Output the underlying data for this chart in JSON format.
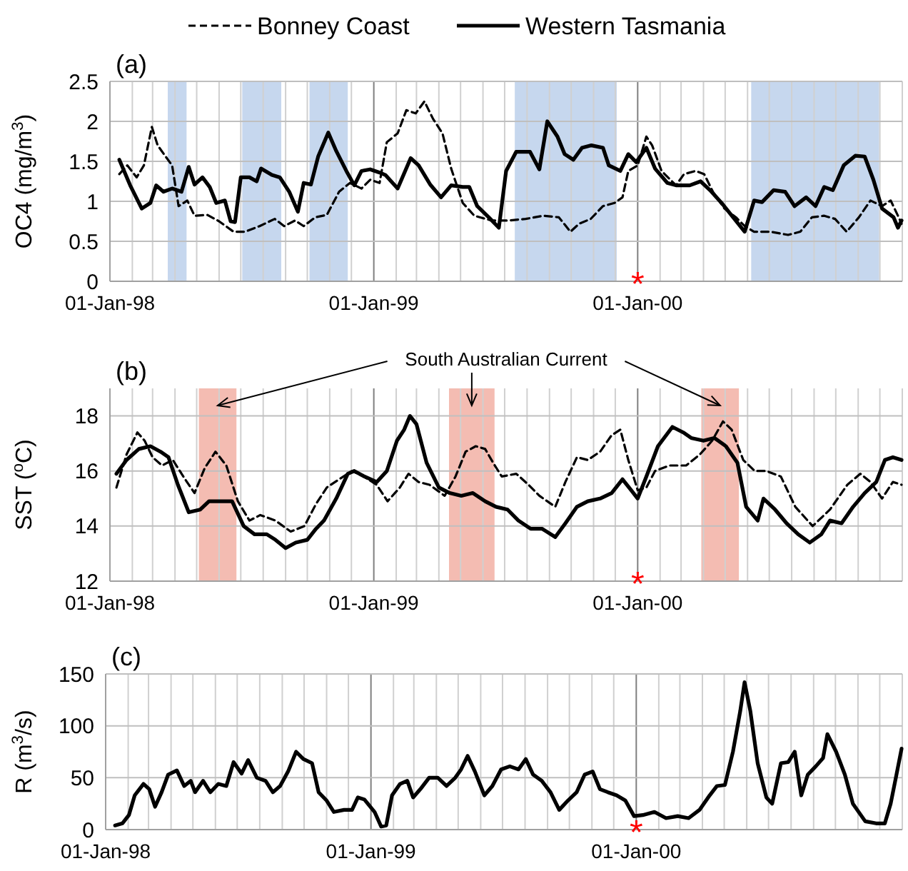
{
  "chart_data": [
    {
      "type": "line",
      "title": "(a)",
      "ylabel": "OC4 (mg/m$^{3}$)",
      "legend": "top",
      "grid": true,
      "xlim": [
        "1998-01-01",
        "2001-01-01"
      ],
      "xticks": [
        {
          "value": "1998-01-01",
          "label": "01-Jan-98"
        },
        {
          "value": "1998-02-01",
          "label": null
        },
        {
          "value": "1998-03-01",
          "label": null
        },
        {
          "value": "1998-04-01",
          "label": null
        },
        {
          "value": "1998-05-01",
          "label": null
        },
        {
          "value": "1998-06-01",
          "label": null
        },
        {
          "value": "1998-07-01",
          "label": null
        },
        {
          "value": "1998-08-01",
          "label": null
        },
        {
          "value": "1998-09-01",
          "label": null
        },
        {
          "value": "1998-10-01",
          "label": null
        },
        {
          "value": "1998-11-01",
          "label": null
        },
        {
          "value": "1998-12-01",
          "label": null
        },
        {
          "value": "1999-01-01",
          "label": "01-Jan-99"
        },
        {
          "value": "1999-02-01",
          "label": null
        },
        {
          "value": "1999-03-01",
          "label": null
        },
        {
          "value": "1999-04-01",
          "label": null
        },
        {
          "value": "1999-05-01",
          "label": null
        },
        {
          "value": "1999-06-01",
          "label": null
        },
        {
          "value": "1999-07-01",
          "label": null
        },
        {
          "value": "1999-08-01",
          "label": null
        },
        {
          "value": "1999-09-01",
          "label": null
        },
        {
          "value": "1999-10-01",
          "label": null
        },
        {
          "value": "1999-11-01",
          "label": null
        },
        {
          "value": "1999-12-01",
          "label": null
        },
        {
          "value": "2000-01-01",
          "label": "01-Jan-00"
        },
        {
          "value": "2000-02-01",
          "label": null
        },
        {
          "value": "2000-03-01",
          "label": null
        },
        {
          "value": "2000-04-01",
          "label": null
        },
        {
          "value": "2000-05-01",
          "label": null
        },
        {
          "value": "2000-06-01",
          "label": null
        },
        {
          "value": "2000-07-01",
          "label": null
        },
        {
          "value": "2000-08-01",
          "label": null
        },
        {
          "value": "2000-09-01",
          "label": null
        },
        {
          "value": "2000-10-01",
          "label": null
        },
        {
          "value": "2000-11-01",
          "label": null
        },
        {
          "value": "2000-12-01",
          "label": null
        },
        {
          "value": "2001-01-01",
          "label": null
        }
      ],
      "ylim": [
        0,
        2.5
      ],
      "yticks": [
        0,
        0.5,
        1,
        1.5,
        2,
        2.5
      ],
      "bands": [
        {
          "axis": "x",
          "from": "1998-03-22",
          "to": "1998-04-17",
          "color": "#c6d7ee"
        },
        {
          "axis": "x",
          "from": "1998-07-03",
          "to": "1998-08-26",
          "color": "#c6d7ee"
        },
        {
          "axis": "x",
          "from": "1998-10-04",
          "to": "1998-11-26",
          "color": "#c6d7ee"
        },
        {
          "axis": "x",
          "from": "1999-07-15",
          "to": "1999-12-03",
          "color": "#c6d7ee"
        },
        {
          "axis": "x",
          "from": "2000-06-06",
          "to": "2000-11-30",
          "color": "#c6d7ee"
        }
      ],
      "annotations": [
        "*"
      ],
      "series": [
        {
          "name": "Bonney Coast",
          "color": "#000000",
          "line_style": "dashed",
          "x": [
            "1998-01-14",
            "1998-01-25",
            "1998-02-07",
            "1998-02-17",
            "1998-02-28",
            "1998-03-08",
            "1998-03-19",
            "1998-03-28",
            "1998-04-06",
            "1998-04-18",
            "1998-04-28",
            "1998-05-16",
            "1998-06-01",
            "1998-06-21",
            "1998-07-07",
            "1998-07-27",
            "1998-08-17",
            "1998-08-30",
            "1998-09-14",
            "1998-09-26",
            "1998-10-12",
            "1998-10-28",
            "1998-11-14",
            "1998-11-29",
            "1998-12-15",
            "1998-12-27",
            "1999-01-09",
            "1999-01-19",
            "1999-02-03",
            "1999-02-15",
            "1999-02-28",
            "1999-03-12",
            "1999-03-24",
            "1999-04-06",
            "1999-04-18",
            "1999-05-04",
            "1999-05-20",
            "1999-06-13",
            "1999-07-07",
            "1999-07-30",
            "1999-08-24",
            "1999-09-14",
            "1999-09-30",
            "1999-10-12",
            "1999-10-28",
            "1999-11-14",
            "1999-11-30",
            "1999-12-11",
            "1999-12-19",
            "2000-01-01",
            "2000-01-13",
            "2000-01-21",
            "2000-02-03",
            "2000-02-23",
            "2000-03-05",
            "2000-03-21",
            "2000-04-02",
            "2000-04-14",
            "2000-04-30",
            "2000-05-16",
            "2000-05-28",
            "2000-06-10",
            "2000-07-03",
            "2000-07-27",
            "2000-08-13",
            "2000-08-29",
            "2000-09-15",
            "2000-09-30",
            "2000-10-16",
            "2000-11-02",
            "2000-11-18",
            "2000-12-04",
            "2000-12-16",
            "2000-12-27",
            "2000-12-31"
          ],
          "values": [
            1.34,
            1.45,
            1.3,
            1.45,
            1.93,
            1.7,
            1.56,
            1.45,
            0.94,
            1.01,
            0.82,
            0.83,
            0.75,
            0.62,
            0.62,
            0.69,
            0.78,
            0.69,
            0.76,
            0.69,
            0.8,
            0.83,
            1.12,
            1.23,
            1.16,
            1.27,
            1.23,
            1.74,
            1.85,
            2.14,
            2.1,
            2.25,
            2.03,
            1.85,
            1.41,
            0.98,
            0.82,
            0.76,
            0.76,
            0.78,
            0.82,
            0.8,
            0.62,
            0.72,
            0.78,
            0.94,
            0.98,
            1.05,
            1.38,
            1.45,
            1.81,
            1.7,
            1.38,
            1.2,
            1.34,
            1.38,
            1.34,
            1.12,
            0.91,
            0.8,
            0.69,
            0.62,
            0.62,
            0.58,
            0.62,
            0.8,
            0.82,
            0.78,
            0.62,
            0.8,
            1.01,
            0.94,
            1.01,
            0.8,
            0.72
          ]
        },
        {
          "name": "Western Tasmania",
          "color": "#000000",
          "line_style": "solid",
          "x": [
            "1998-01-14",
            "1998-01-29",
            "1998-02-14",
            "1998-02-26",
            "1998-03-06",
            "1998-03-16",
            "1998-03-28",
            "1998-04-10",
            "1998-04-20",
            "1998-04-28",
            "1998-05-09",
            "1998-05-19",
            "1998-05-28",
            "1998-06-09",
            "1998-06-17",
            "1998-06-23",
            "1998-07-01",
            "1998-07-13",
            "1998-07-23",
            "1998-07-29",
            "1998-08-13",
            "1998-08-24",
            "1998-09-06",
            "1998-09-18",
            "1998-09-26",
            "1998-10-06",
            "1998-10-16",
            "1998-10-30",
            "1998-11-10",
            "1998-11-24",
            "1998-12-05",
            "1998-12-15",
            "1998-12-27",
            "1999-01-09",
            "1999-01-17",
            "1999-02-03",
            "1999-02-21",
            "1999-03-04",
            "1999-03-20",
            "1999-04-04",
            "1999-04-18",
            "1999-05-04",
            "1999-05-13",
            "1999-05-24",
            "1999-06-09",
            "1999-06-23",
            "1999-07-03",
            "1999-07-17",
            "1999-08-05",
            "1999-08-18",
            "1999-08-29",
            "1999-09-12",
            "1999-09-22",
            "1999-10-04",
            "1999-10-16",
            "1999-10-29",
            "1999-11-14",
            "1999-11-22",
            "1999-12-08",
            "1999-12-19",
            "1999-12-30",
            "2000-01-13",
            "2000-01-25",
            "2000-02-11",
            "2000-02-23",
            "2000-03-13",
            "2000-03-28",
            "2000-04-10",
            "2000-04-26",
            "2000-05-12",
            "2000-05-28",
            "2000-06-10",
            "2000-06-21",
            "2000-07-07",
            "2000-07-23",
            "2000-08-05",
            "2000-08-21",
            "2000-09-03",
            "2000-09-15",
            "2000-09-27",
            "2000-10-12",
            "2000-10-28",
            "2000-11-10",
            "2000-11-22",
            "2000-12-04",
            "2000-12-20",
            "2000-12-26",
            "2000-12-31"
          ],
          "values": [
            1.52,
            1.2,
            0.91,
            0.98,
            1.2,
            1.12,
            1.16,
            1.12,
            1.43,
            1.21,
            1.3,
            1.18,
            0.98,
            1.01,
            0.75,
            0.74,
            1.3,
            1.3,
            1.25,
            1.41,
            1.33,
            1.3,
            1.12,
            0.87,
            1.23,
            1.21,
            1.56,
            1.86,
            1.63,
            1.38,
            1.2,
            1.38,
            1.4,
            1.36,
            1.33,
            1.16,
            1.54,
            1.45,
            1.21,
            1.05,
            1.2,
            1.18,
            1.18,
            0.94,
            0.8,
            0.67,
            1.38,
            1.62,
            1.62,
            1.4,
            2.0,
            1.81,
            1.59,
            1.52,
            1.67,
            1.7,
            1.67,
            1.45,
            1.38,
            1.59,
            1.49,
            1.67,
            1.41,
            1.23,
            1.2,
            1.2,
            1.25,
            1.14,
            0.98,
            0.8,
            0.62,
            1.01,
            0.99,
            1.14,
            1.12,
            0.94,
            1.05,
            0.94,
            1.18,
            1.14,
            1.45,
            1.57,
            1.56,
            1.27,
            0.91,
            0.8,
            0.67,
            0.76
          ]
        }
      ]
    },
    {
      "type": "line",
      "title": "(b)",
      "ylabel": "SST ($^{o}$C)",
      "legend": false,
      "grid": true,
      "xlim": [
        "1998-01-01",
        "2001-01-01"
      ],
      "xticks": [
        {
          "value": "1998-01-01",
          "label": "01-Jan-98"
        },
        {
          "value": "1998-02-01",
          "label": null
        },
        {
          "value": "1998-03-01",
          "label": null
        },
        {
          "value": "1998-04-01",
          "label": null
        },
        {
          "value": "1998-05-01",
          "label": null
        },
        {
          "value": "1998-06-01",
          "label": null
        },
        {
          "value": "1998-07-01",
          "label": null
        },
        {
          "value": "1998-08-01",
          "label": null
        },
        {
          "value": "1998-09-01",
          "label": null
        },
        {
          "value": "1998-10-01",
          "label": null
        },
        {
          "value": "1998-11-01",
          "label": null
        },
        {
          "value": "1998-12-01",
          "label": null
        },
        {
          "value": "1999-01-01",
          "label": "01-Jan-99"
        },
        {
          "value": "1999-02-01",
          "label": null
        },
        {
          "value": "1999-03-01",
          "label": null
        },
        {
          "value": "1999-04-01",
          "label": null
        },
        {
          "value": "1999-05-01",
          "label": null
        },
        {
          "value": "1999-06-01",
          "label": null
        },
        {
          "value": "1999-07-01",
          "label": null
        },
        {
          "value": "1999-08-01",
          "label": null
        },
        {
          "value": "1999-09-01",
          "label": null
        },
        {
          "value": "1999-10-01",
          "label": null
        },
        {
          "value": "1999-11-01",
          "label": null
        },
        {
          "value": "1999-12-01",
          "label": null
        },
        {
          "value": "2000-01-01",
          "label": "01-Jan-00"
        },
        {
          "value": "2000-02-01",
          "label": null
        },
        {
          "value": "2000-03-01",
          "label": null
        },
        {
          "value": "2000-04-01",
          "label": null
        },
        {
          "value": "2000-05-01",
          "label": null
        },
        {
          "value": "2000-06-01",
          "label": null
        },
        {
          "value": "2000-07-01",
          "label": null
        },
        {
          "value": "2000-08-01",
          "label": null
        },
        {
          "value": "2000-09-01",
          "label": null
        },
        {
          "value": "2000-10-01",
          "label": null
        },
        {
          "value": "2000-11-01",
          "label": null
        },
        {
          "value": "2000-12-01",
          "label": null
        },
        {
          "value": "2001-01-01",
          "label": null
        }
      ],
      "ylim": [
        12,
        19
      ],
      "yticks": [
        12,
        14,
        16,
        18
      ],
      "bands": [
        {
          "axis": "x",
          "from": "1998-05-04",
          "to": "1998-06-25",
          "color": "#f4bcb2"
        },
        {
          "axis": "x",
          "from": "1999-04-15",
          "to": "1999-06-17",
          "color": "#f4bcb2"
        },
        {
          "axis": "x",
          "from": "2000-03-29",
          "to": "2000-05-20",
          "color": "#f4bcb2"
        }
      ],
      "annotations": [
        "South Australian Current",
        "*"
      ],
      "series": [
        {
          "color": "#000000",
          "line_style": "dashed",
          "x": [
            "1998-01-10",
            "1998-01-24",
            "1998-02-08",
            "1998-02-18",
            "1998-03-01",
            "1998-03-14",
            "1998-03-29",
            "1998-04-15",
            "1998-04-28",
            "1998-05-12",
            "1998-05-27",
            "1998-06-11",
            "1998-06-27",
            "1998-07-13",
            "1998-07-28",
            "1998-08-18",
            "1998-09-08",
            "1998-09-27",
            "1998-10-13",
            "1998-10-28",
            "1998-11-14",
            "1998-12-02",
            "1998-12-18",
            "1999-01-05",
            "1999-01-20",
            "1999-02-06",
            "1999-02-18",
            "1999-03-04",
            "1999-03-19",
            "1999-04-09",
            "1999-04-24",
            "1999-05-08",
            "1999-05-22",
            "1999-06-04",
            "1999-06-15",
            "1999-06-27",
            "1999-07-17",
            "1999-08-03",
            "1999-08-18",
            "1999-09-09",
            "1999-09-23",
            "1999-10-09",
            "1999-10-24",
            "1999-11-10",
            "1999-11-26",
            "1999-12-08",
            "1999-12-19",
            "2000-01-01",
            "2000-01-13",
            "2000-01-25",
            "2000-02-14",
            "2000-03-08",
            "2000-03-27",
            "2000-04-13",
            "2000-04-28",
            "2000-05-10",
            "2000-05-26",
            "2000-06-11",
            "2000-06-27",
            "2000-07-17",
            "2000-08-06",
            "2000-08-30",
            "2000-09-23",
            "2000-10-17",
            "2000-11-04",
            "2000-11-18",
            "2000-12-04",
            "2000-12-19",
            "2000-12-31"
          ],
          "values": [
            15.4,
            16.6,
            17.4,
            17.1,
            16.5,
            16.2,
            16.4,
            15.7,
            15.2,
            16.1,
            16.7,
            16.2,
            14.9,
            14.2,
            14.4,
            14.2,
            13.8,
            14.0,
            14.8,
            15.4,
            15.7,
            16.0,
            15.8,
            15.5,
            14.9,
            15.4,
            15.9,
            15.6,
            15.5,
            15.1,
            15.8,
            16.7,
            16.9,
            16.8,
            16.3,
            15.8,
            15.9,
            15.5,
            15.1,
            14.7,
            15.6,
            16.5,
            16.4,
            16.7,
            17.3,
            17.5,
            16.4,
            15.3,
            15.4,
            16.0,
            16.2,
            16.2,
            16.6,
            17.1,
            17.8,
            17.5,
            16.4,
            16.0,
            16.0,
            15.8,
            14.7,
            14.0,
            14.6,
            15.5,
            15.9,
            15.6,
            15.0,
            15.6,
            15.5
          ]
        },
        {
          "color": "#000000",
          "line_style": "solid",
          "x": [
            "1998-01-10",
            "1998-01-24",
            "1998-02-10",
            "1998-02-26",
            "1998-03-12",
            "1998-03-23",
            "1998-04-05",
            "1998-04-20",
            "1998-05-06",
            "1998-05-18",
            "1998-06-08",
            "1998-06-19",
            "1998-07-05",
            "1998-07-20",
            "1998-08-06",
            "1998-08-18",
            "1998-09-01",
            "1998-09-15",
            "1998-10-01",
            "1998-10-13",
            "1998-10-24",
            "1998-11-10",
            "1998-11-26",
            "1998-12-05",
            "1998-12-19",
            "1999-01-05",
            "1999-01-19",
            "1999-02-02",
            "1999-02-12",
            "1999-02-20",
            "1999-03-01",
            "1999-03-15",
            "1999-04-01",
            "1999-04-16",
            "1999-05-02",
            "1999-05-18",
            "1999-06-04",
            "1999-06-19",
            "1999-07-05",
            "1999-07-20",
            "1999-08-06",
            "1999-08-22",
            "1999-09-09",
            "1999-09-23",
            "1999-10-09",
            "1999-10-24",
            "1999-11-10",
            "1999-11-26",
            "1999-12-11",
            "1999-12-23",
            "2000-01-01",
            "2000-01-13",
            "2000-01-29",
            "2000-02-18",
            "2000-03-04",
            "2000-03-15",
            "2000-04-01",
            "2000-04-16",
            "2000-05-02",
            "2000-05-18",
            "2000-05-30",
            "2000-06-15",
            "2000-06-23",
            "2000-07-09",
            "2000-07-25",
            "2000-08-10",
            "2000-08-26",
            "2000-09-11",
            "2000-09-23",
            "2000-10-09",
            "2000-10-25",
            "2000-11-10",
            "2000-11-26",
            "2000-12-08",
            "2000-12-19",
            "2000-12-31"
          ],
          "values": [
            15.9,
            16.4,
            16.8,
            16.9,
            16.7,
            16.5,
            15.5,
            14.5,
            14.6,
            14.9,
            14.9,
            14.9,
            14.0,
            13.7,
            13.7,
            13.5,
            13.2,
            13.4,
            13.5,
            13.9,
            14.2,
            15.0,
            15.9,
            16.0,
            15.8,
            15.6,
            16.0,
            17.1,
            17.5,
            18.0,
            17.7,
            16.3,
            15.4,
            15.2,
            15.1,
            15.2,
            14.9,
            14.7,
            14.6,
            14.2,
            13.9,
            13.9,
            13.6,
            14.1,
            14.7,
            14.9,
            15.0,
            15.2,
            15.7,
            15.3,
            15.0,
            15.8,
            16.9,
            17.6,
            17.4,
            17.2,
            17.1,
            17.2,
            16.9,
            16.3,
            14.7,
            14.2,
            15.0,
            14.6,
            14.1,
            13.7,
            13.4,
            13.7,
            14.2,
            14.1,
            14.7,
            15.2,
            15.6,
            16.4,
            16.5,
            16.4
          ]
        }
      ]
    },
    {
      "type": "line",
      "title": "(c)",
      "ylabel": "R (m$^{3}$/s)",
      "legend": false,
      "grid": true,
      "xlim": [
        "1998-01-01",
        "2001-01-01"
      ],
      "xticks": [
        {
          "value": "1998-01-01",
          "label": "01-Jan-98"
        },
        {
          "value": "1998-02-01",
          "label": null
        },
        {
          "value": "1998-03-01",
          "label": null
        },
        {
          "value": "1998-04-01",
          "label": null
        },
        {
          "value": "1998-05-01",
          "label": null
        },
        {
          "value": "1998-06-01",
          "label": null
        },
        {
          "value": "1998-07-01",
          "label": null
        },
        {
          "value": "1998-08-01",
          "label": null
        },
        {
          "value": "1998-09-01",
          "label": null
        },
        {
          "value": "1998-10-01",
          "label": null
        },
        {
          "value": "1998-11-01",
          "label": null
        },
        {
          "value": "1998-12-01",
          "label": null
        },
        {
          "value": "1999-01-01",
          "label": "01-Jan-99"
        },
        {
          "value": "1999-02-01",
          "label": null
        },
        {
          "value": "1999-03-01",
          "label": null
        },
        {
          "value": "1999-04-01",
          "label": null
        },
        {
          "value": "1999-05-01",
          "label": null
        },
        {
          "value": "1999-06-01",
          "label": null
        },
        {
          "value": "1999-07-01",
          "label": null
        },
        {
          "value": "1999-08-01",
          "label": null
        },
        {
          "value": "1999-09-01",
          "label": null
        },
        {
          "value": "1999-10-01",
          "label": null
        },
        {
          "value": "1999-11-01",
          "label": null
        },
        {
          "value": "1999-12-01",
          "label": null
        },
        {
          "value": "2000-01-01",
          "label": "01-Jan-00"
        },
        {
          "value": "2000-02-01",
          "label": null
        },
        {
          "value": "2000-03-01",
          "label": null
        },
        {
          "value": "2000-04-01",
          "label": null
        },
        {
          "value": "2000-05-01",
          "label": null
        },
        {
          "value": "2000-06-01",
          "label": null
        },
        {
          "value": "2000-07-01",
          "label": null
        },
        {
          "value": "2000-08-01",
          "label": null
        },
        {
          "value": "2000-09-01",
          "label": null
        },
        {
          "value": "2000-10-01",
          "label": null
        },
        {
          "value": "2000-11-01",
          "label": null
        },
        {
          "value": "2000-12-01",
          "label": null
        },
        {
          "value": "2001-01-01",
          "label": null
        }
      ],
      "ylim": [
        0,
        150
      ],
      "yticks": [
        0,
        50,
        100,
        150
      ],
      "annotations": [
        "*"
      ],
      "series": [
        {
          "color": "#000000",
          "line_style": "solid",
          "x": [
            "1998-01-14",
            "1998-01-24",
            "1998-02-02",
            "1998-02-10",
            "1998-02-22",
            "1998-03-02",
            "1998-03-10",
            "1998-03-19",
            "1998-03-28",
            "1998-04-09",
            "1998-04-19",
            "1998-04-28",
            "1998-05-04",
            "1998-05-15",
            "1998-05-25",
            "1998-06-05",
            "1998-06-16",
            "1998-06-26",
            "1998-07-07",
            "1998-07-16",
            "1998-07-28",
            "1998-08-09",
            "1998-08-19",
            "1998-08-29",
            "1998-09-09",
            "1998-09-20",
            "1998-09-30",
            "1998-10-12",
            "1998-10-21",
            "1998-11-01",
            "1998-11-11",
            "1998-11-25",
            "1998-12-06",
            "1998-12-14",
            "1998-12-23",
            "1999-01-06",
            "1999-01-15",
            "1999-01-22",
            "1999-01-30",
            "1999-02-10",
            "1999-02-20",
            "1999-02-28",
            "1999-03-10",
            "1999-03-22",
            "1999-04-03",
            "1999-04-15",
            "1999-04-27",
            "1999-05-05",
            "1999-05-14",
            "1999-05-24",
            "1999-06-06",
            "1999-06-17",
            "1999-06-29",
            "1999-07-11",
            "1999-07-23",
            "1999-08-02",
            "1999-08-12",
            "1999-08-24",
            "1999-09-05",
            "1999-09-17",
            "1999-09-29",
            "1999-10-11",
            "1999-10-22",
            "1999-11-02",
            "1999-11-12",
            "1999-11-23",
            "1999-12-05",
            "1999-12-17",
            "1999-12-29",
            "2000-01-10",
            "2000-01-26",
            "2000-02-11",
            "2000-02-27",
            "2000-03-13",
            "2000-03-28",
            "2000-04-11",
            "2000-04-21",
            "2000-05-02",
            "2000-05-13",
            "2000-05-23",
            "2000-05-29",
            "2000-06-06",
            "2000-06-16",
            "2000-06-28",
            "2000-07-06",
            "2000-07-18",
            "2000-07-28",
            "2000-08-06",
            "2000-08-15",
            "2000-08-24",
            "2000-09-04",
            "2000-09-14",
            "2000-09-20",
            "2000-10-02",
            "2000-10-14",
            "2000-10-25",
            "2000-11-11",
            "2000-11-26",
            "2000-12-08",
            "2000-12-16",
            "2000-12-24",
            "2000-12-31"
          ],
          "values": [
            4,
            6,
            14,
            33,
            44,
            39,
            22,
            36,
            53,
            57,
            42,
            47,
            36,
            47,
            36,
            44,
            42,
            65,
            54,
            67,
            50,
            47,
            36,
            42,
            56,
            75,
            68,
            64,
            36,
            28,
            17,
            19,
            19,
            31,
            29,
            17,
            3,
            4,
            33,
            44,
            47,
            31,
            39,
            50,
            50,
            42,
            50,
            58,
            71,
            56,
            33,
            42,
            58,
            61,
            58,
            68,
            53,
            47,
            36,
            19,
            28,
            36,
            53,
            56,
            39,
            36,
            33,
            28,
            13,
            14,
            17,
            11,
            13,
            11,
            19,
            33,
            42,
            43,
            75,
            114,
            142,
            114,
            64,
            31,
            25,
            64,
            65,
            75,
            33,
            53,
            61,
            69,
            92,
            75,
            53,
            25,
            8,
            6,
            6,
            25,
            53,
            78
          ]
        }
      ]
    }
  ]
}
